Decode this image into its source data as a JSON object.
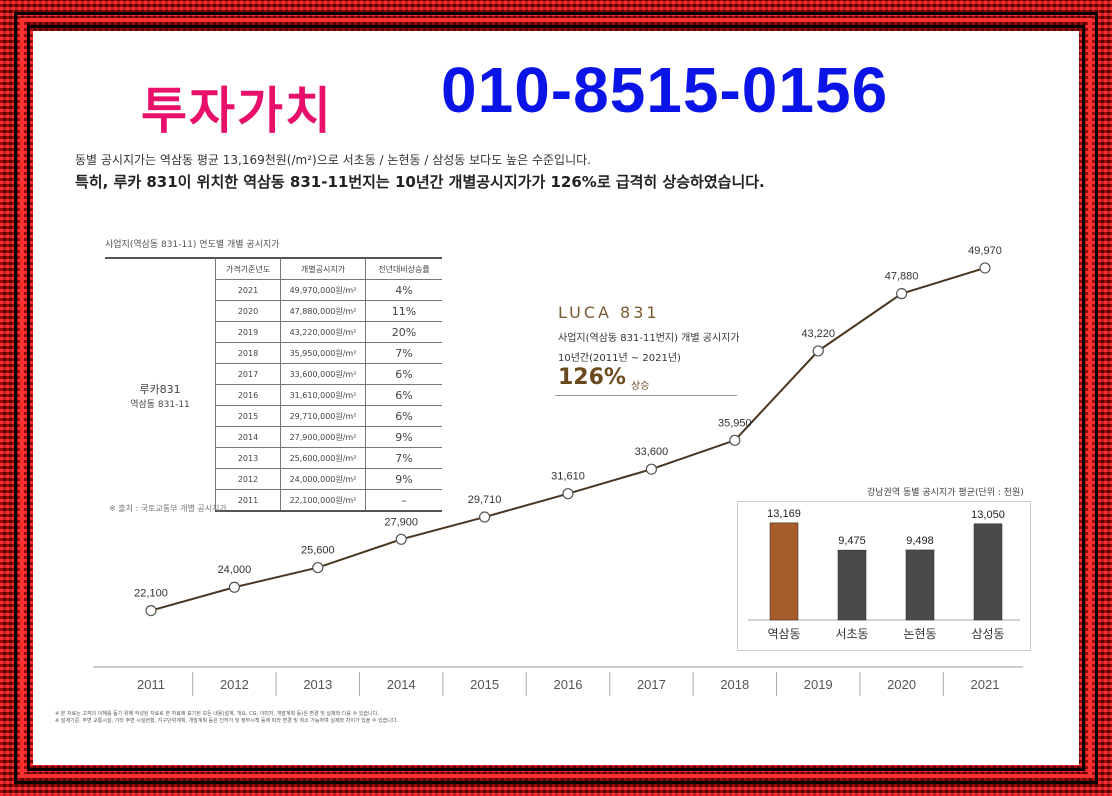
{
  "header": {
    "title": "투자가치",
    "phone": "010-8515-0156"
  },
  "intro": {
    "line1": "동별 공시지가는 역삼동 평균 13,169천원(/m²)으로 서초동 / 논현동 / 삼성동 보다도 높은 수준입니다.",
    "line2": "특히, 루카 831이 위치한 역삼동 831-11번지는 10년간 개별공시지가가 126%로 급격히 상승하였습니다."
  },
  "table": {
    "title": "사업지(역삼동 831-11) 연도별 개별 공시지가",
    "headers": [
      "가격기준년도",
      "개별공시지가",
      "전년대비상승률"
    ],
    "side_label_1": "루카831",
    "side_label_2": "역삼동 831-11",
    "rows": [
      [
        "2021",
        "49,970,000원/m²",
        "4%"
      ],
      [
        "2020",
        "47,880,000원/m²",
        "11%"
      ],
      [
        "2019",
        "43,220,000원/m²",
        "20%"
      ],
      [
        "2018",
        "35,950,000원/m²",
        "7%"
      ],
      [
        "2017",
        "33,600,000원/m²",
        "6%"
      ],
      [
        "2016",
        "31,610,000원/m²",
        "6%"
      ],
      [
        "2015",
        "29,710,000원/m²",
        "6%"
      ],
      [
        "2014",
        "27,900,000원/m²",
        "9%"
      ],
      [
        "2013",
        "25,600,000원/m²",
        "7%"
      ],
      [
        "2012",
        "24,000,000원/m²",
        "9%"
      ],
      [
        "2011",
        "22,100,000원/m²",
        "–"
      ]
    ],
    "source": "※ 출처 : 국토교통부 개별 공시지가"
  },
  "luca": {
    "logo": "LUCA 831",
    "line1": "사업지(역삼동 831-11번지) 개별 공시지가",
    "line2": "10년간(2011년 ~ 2021년)",
    "pct": "126%",
    "sub": "상승"
  },
  "notes": {
    "n1": "※ 본 자료는 고객의 이해를 돕기 위해 작성된 자료로 본 자료에 표기된 모든 내용(설계, 개요, CG, 이미지, 개발계획 등)은 변경 및 실제와 다를 수 있습니다.",
    "n2": "※ 설계기준, 주변 교통시설, 기타 주변 시설현황, 지구단위계획, 개발계획 등은 인허가 및 정부시책 등에 따라 변경 및 취소 가능하며 실제와 차이가 있을 수 있습니다."
  },
  "colors": {
    "accent": "#e8106a",
    "phone": "#0a14e6",
    "highlight_bar": "#a65c2b",
    "other_bar": "#4a4a4a",
    "line": "#4a3520"
  },
  "chart_data": [
    {
      "type": "line",
      "x": [
        "2011",
        "2012",
        "2013",
        "2014",
        "2015",
        "2016",
        "2017",
        "2018",
        "2019",
        "2020",
        "2021"
      ],
      "values": [
        22100,
        24000,
        25600,
        27900,
        29710,
        31610,
        33600,
        35950,
        43220,
        47880,
        49970
      ],
      "labels": [
        "22,100",
        "24,000",
        "25,600",
        "27,900",
        "29,710",
        "31,610",
        "33,600",
        "35,950",
        "43,220",
        "47,880",
        "49,970"
      ],
      "ylim": [
        18000,
        52000
      ],
      "grid": false
    },
    {
      "type": "bar",
      "title": "강남권역 동별 공시지가 평균(단위 : 천원)",
      "categories": [
        "역삼동",
        "서초동",
        "논현동",
        "삼성동"
      ],
      "values": [
        13169,
        9475,
        9498,
        13050
      ],
      "labels": [
        "13,169",
        "9,475",
        "9,498",
        "13,050"
      ],
      "ylim": [
        0,
        16000
      ]
    }
  ]
}
